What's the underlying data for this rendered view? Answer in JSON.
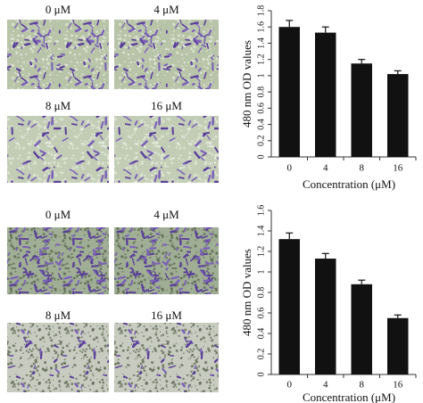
{
  "image_labels": [
    [
      "0 μM",
      "4 μM",
      "8 μM",
      "16 μM"
    ],
    [
      "0 μM",
      "4 μM",
      "8 μM",
      "16 μM"
    ]
  ],
  "chart_data": [
    {
      "type": "bar",
      "categories": [
        "0",
        "4",
        "8",
        "16"
      ],
      "values": [
        1.6,
        1.53,
        1.15,
        1.02
      ],
      "errors": [
        0.08,
        0.07,
        0.05,
        0.04
      ],
      "color": "#111111",
      "x_label": "Concentration (μM)",
      "y_label": "480 nm OD values",
      "ylim": [
        0,
        1.8
      ],
      "yticks": [
        0,
        0.2,
        0.4,
        0.6,
        0.8,
        1,
        1.2,
        1.4,
        1.6,
        1.8
      ]
    },
    {
      "type": "bar",
      "categories": [
        "0",
        "4",
        "8",
        "16"
      ],
      "values": [
        1.32,
        1.13,
        0.88,
        0.55
      ],
      "errors": [
        0.06,
        0.05,
        0.04,
        0.03
      ],
      "color": "#111111",
      "x_label": "Concentration (μM)",
      "y_label": "480 nm OD values",
      "ylim": [
        0,
        1.6
      ],
      "yticks": [
        0,
        0.2,
        0.4,
        0.6,
        0.8,
        1,
        1.2,
        1.4,
        1.6
      ]
    }
  ]
}
